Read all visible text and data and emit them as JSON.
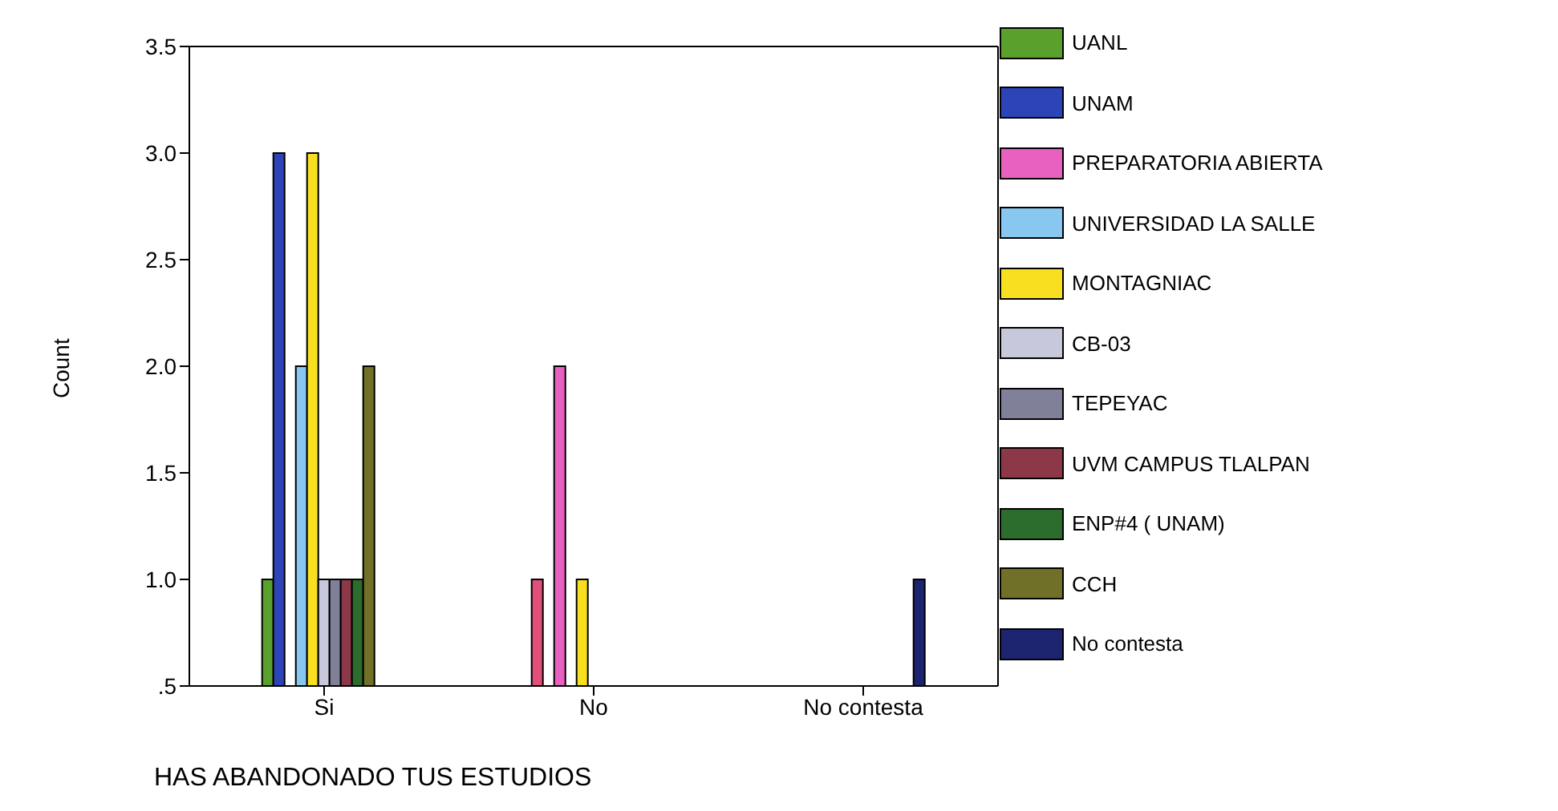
{
  "chart_data": {
    "type": "bar",
    "xlabel": "HAS ABANDONADO TUS ESTUDIOS",
    "ylabel": "Count",
    "categories": [
      "Si",
      "No",
      "No contesta"
    ],
    "series": [
      {
        "name": "UANL",
        "color": "#5aa02c",
        "colors": [
          "#5aa02c",
          "#e0507a",
          null
        ],
        "values": [
          1,
          1,
          null
        ]
      },
      {
        "name": "UNAM",
        "color": "#2c44b8",
        "values": [
          3,
          null,
          null
        ]
      },
      {
        "name": "PREPARATORIA ABIERTA",
        "color": "#e860c0",
        "values": [
          null,
          2,
          null
        ]
      },
      {
        "name": "UNIVERSIDAD LA SALLE",
        "color": "#88c8f0",
        "values": [
          2,
          null,
          null
        ]
      },
      {
        "name": "MONTAGNIAC",
        "color": "#f8e020",
        "values": [
          3,
          1,
          null
        ]
      },
      {
        "name": "CB-03",
        "color": "#c8c8dc",
        "values": [
          1,
          null,
          null
        ]
      },
      {
        "name": "TEPEYAC",
        "color": "#808098",
        "values": [
          1,
          null,
          null
        ]
      },
      {
        "name": "UVM CAMPUS TLALPAN",
        "color": "#8c3848",
        "values": [
          1,
          null,
          null
        ]
      },
      {
        "name": "ENP#4 ( UNAM)",
        "color": "#2c6c2c",
        "values": [
          1,
          null,
          null
        ]
      },
      {
        "name": "CCH",
        "color": "#707028",
        "values": [
          2,
          null,
          null
        ]
      },
      {
        "name": "No contesta",
        "color": "#1c2470",
        "values": [
          null,
          null,
          1
        ]
      }
    ],
    "ylim": [
      0.5,
      3.5
    ],
    "yticks": [
      {
        "value": 0.5,
        "label": ".5"
      },
      {
        "value": 1,
        "label": "1.0"
      },
      {
        "value": 1.5,
        "label": "1.5"
      },
      {
        "value": 2,
        "label": "2.0"
      },
      {
        "value": 2.5,
        "label": "2.5"
      },
      {
        "value": 3,
        "label": "3.0"
      },
      {
        "value": 3.5,
        "label": "3.5"
      }
    ],
    "grid": false,
    "legend": "right"
  }
}
